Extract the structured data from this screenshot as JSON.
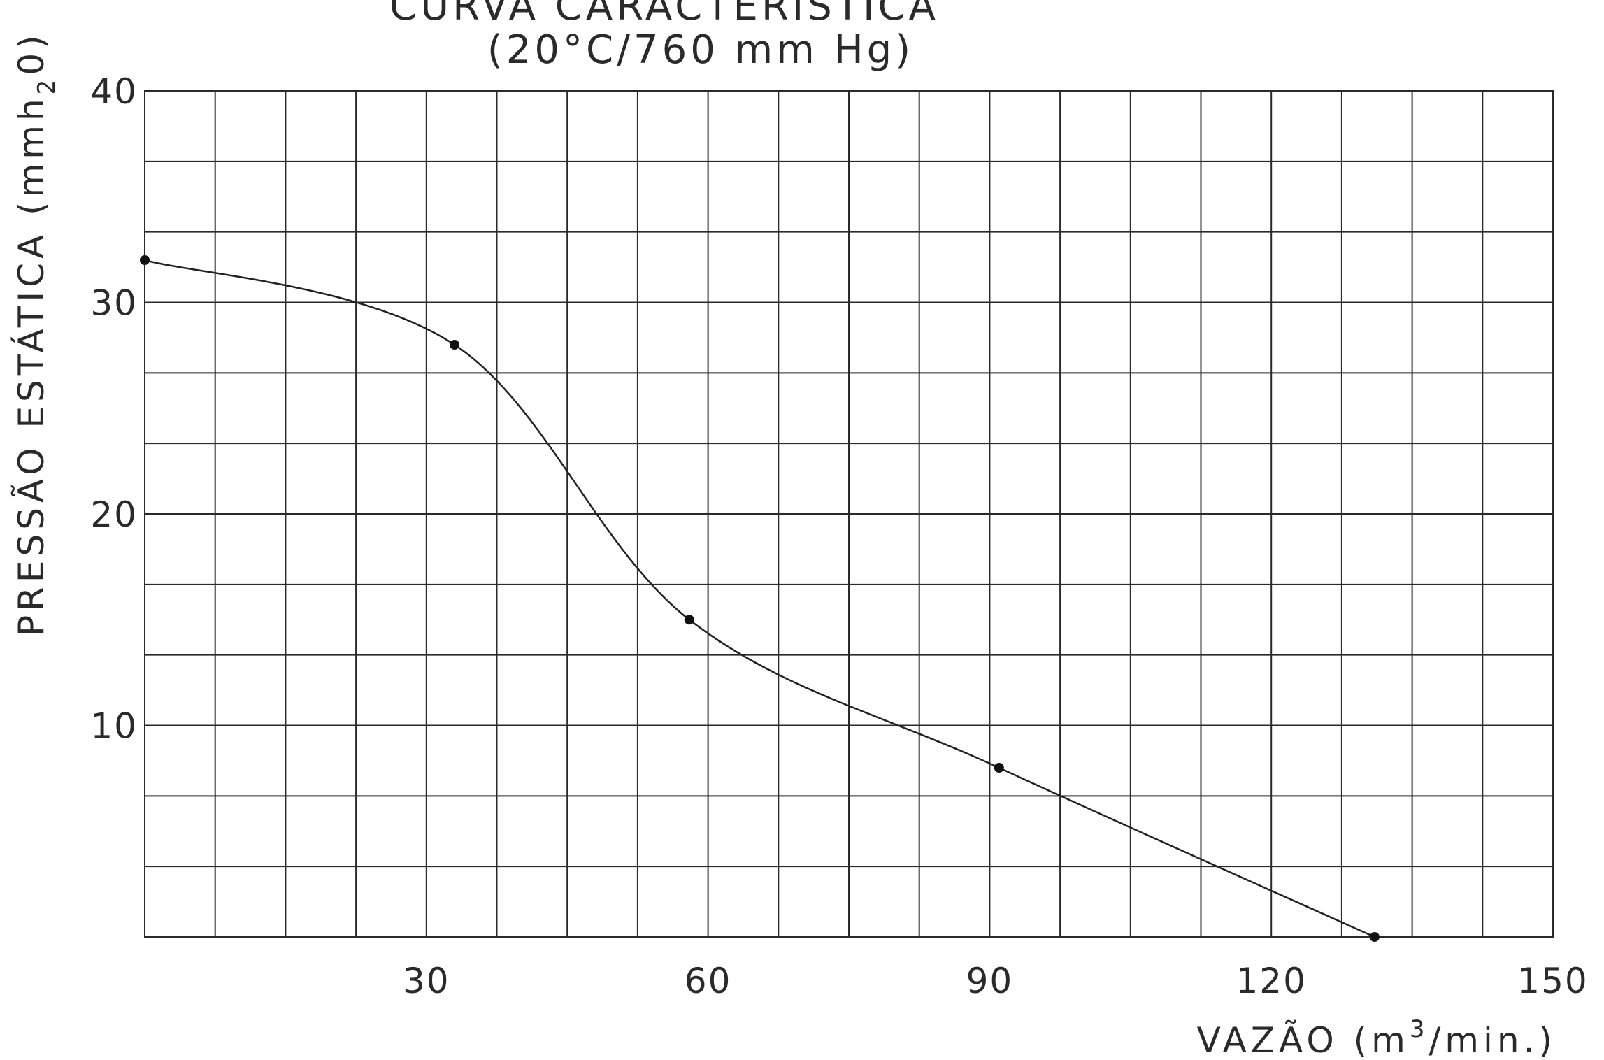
{
  "chart_data": {
    "type": "line",
    "title": "CURVA CARACTERÍSTICA",
    "subtitle": "(20°C/760 mm Hg)",
    "xlabel_main": "VAZÃO (m",
    "xlabel_sup": "3",
    "xlabel_end": "/min.)",
    "ylabel_main": "PRESSÃO ESTÁTICA (mmh",
    "ylabel_sub": "2",
    "ylabel_end": "0)",
    "xlim": [
      0,
      150
    ],
    "ylim": [
      0,
      40
    ],
    "grid": true,
    "x_minor_step": 7.5,
    "y_minor_step": 3.333,
    "x_ticks": [
      30,
      60,
      90,
      120,
      150
    ],
    "y_ticks": [
      10,
      20,
      30,
      40
    ],
    "x_tick_labels": [
      "30",
      "60",
      "90",
      "120",
      "150"
    ],
    "y_tick_labels": [
      "10",
      "20",
      "30",
      "40"
    ],
    "series": [
      {
        "x": [
          0,
          33,
          58,
          91,
          131
        ],
        "y": [
          32,
          28,
          15,
          8,
          0
        ]
      }
    ],
    "colors": {
      "line": "#222222",
      "grid": "#2a2a2a",
      "text": "#2a2a2a"
    }
  }
}
